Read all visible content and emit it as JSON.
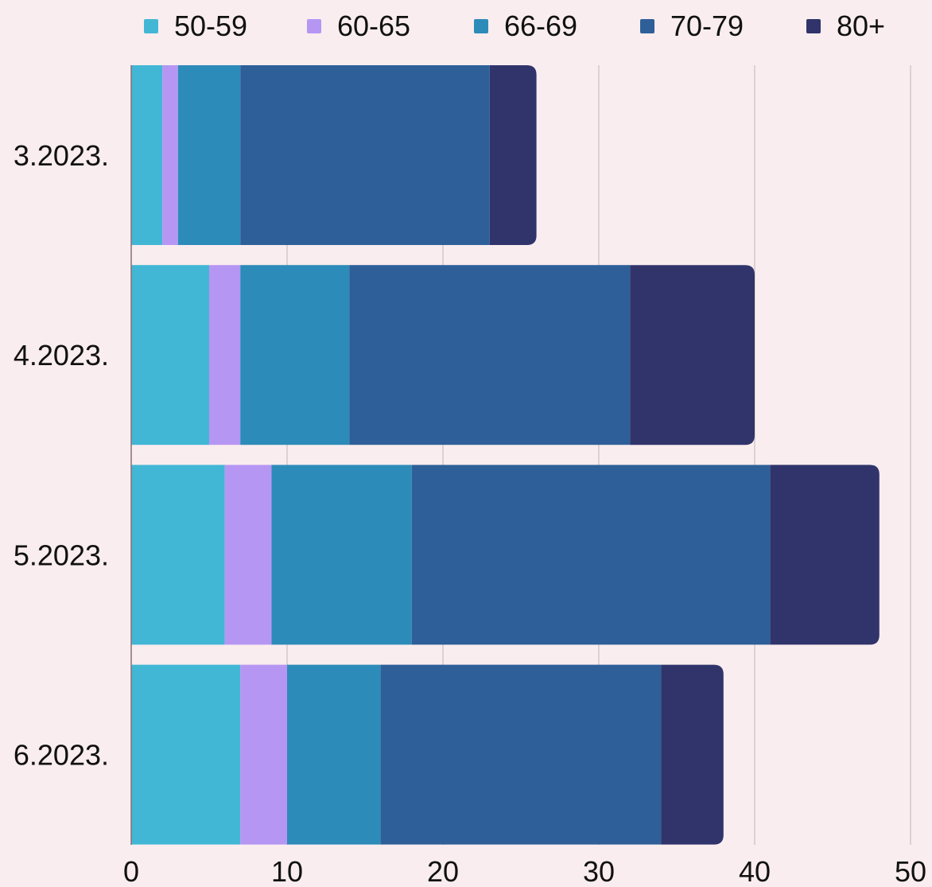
{
  "chart_data": {
    "type": "bar",
    "orientation": "horizontal",
    "stacked": true,
    "title": "",
    "xlabel": "",
    "ylabel": "",
    "categories": [
      "3.2023.",
      "4.2023.",
      "5.2023.",
      "6.2023."
    ],
    "series": [
      {
        "name": "50-59",
        "color": "#42b7d5",
        "values": [
          2,
          5,
          6,
          7
        ]
      },
      {
        "name": "60-65",
        "color": "#b696f3",
        "values": [
          1,
          2,
          3,
          3
        ]
      },
      {
        "name": "66-69",
        "color": "#2d8bb9",
        "values": [
          4,
          7,
          9,
          6
        ]
      },
      {
        "name": "70-79",
        "color": "#2e5f98",
        "values": [
          16,
          18,
          23,
          18
        ]
      },
      {
        "name": "80+",
        "color": "#30346b",
        "values": [
          3,
          8,
          7,
          4
        ]
      }
    ],
    "xlim": [
      0,
      50
    ],
    "x_ticks": [
      0,
      10,
      20,
      30,
      40,
      50
    ],
    "grid": "vertical",
    "legend": "top"
  }
}
